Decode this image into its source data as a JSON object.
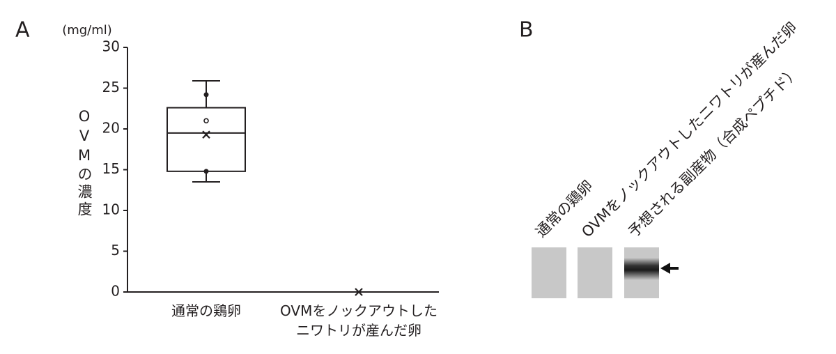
{
  "chart_data": {
    "type": "box",
    "panel_label": "A",
    "y_unit": "(mg/ml)",
    "y_label": "OVMの濃度",
    "categories": [
      "通常の鶏卵",
      "OVMをノックアウトした\nニワトリが産んだ卵"
    ],
    "boxes": [
      {
        "min": 13.5,
        "q1": 14.8,
        "median": 19.5,
        "q3": 22.6,
        "max": 25.9,
        "mean": 19.3,
        "points": [
          24.2,
          14.8
        ],
        "outliers": [
          21.0
        ]
      },
      {
        "mean": 0
      }
    ],
    "ylim": [
      0,
      30
    ],
    "yticks": [
      0,
      5,
      10,
      15,
      20,
      25,
      30
    ],
    "color": "#231f20"
  },
  "panel_b": {
    "label": "B",
    "lanes": [
      "通常の鶏卵",
      "OVMをノックアウトしたニワトリが産んだ卵",
      "予想される副産物（合成ペプチド）"
    ]
  }
}
